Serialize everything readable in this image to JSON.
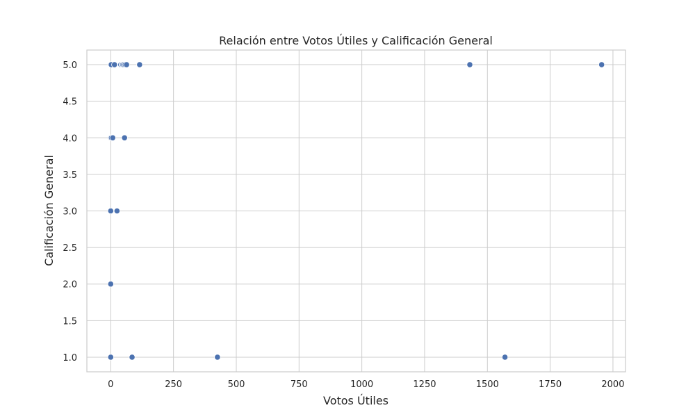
{
  "chart_data": {
    "type": "scatter",
    "title": "Relación entre Votos Útiles y Calificación General",
    "xlabel": "Votos Útiles",
    "ylabel": "Calificación General",
    "xlim": [
      -95,
      2050
    ],
    "ylim": [
      0.8,
      5.2
    ],
    "xticks": [
      0,
      250,
      500,
      750,
      1000,
      1250,
      1500,
      1750,
      2000
    ],
    "yticks": [
      1.0,
      1.5,
      2.0,
      2.5,
      3.0,
      3.5,
      4.0,
      4.5,
      5.0
    ],
    "grid": true,
    "point_color": "#4c72b0",
    "points": [
      {
        "x": 0,
        "y": 5.0
      },
      {
        "x": 2,
        "y": 5.0
      },
      {
        "x": 15,
        "y": 5.0
      },
      {
        "x": 40,
        "y": 5.0
      },
      {
        "x": 45,
        "y": 5.0
      },
      {
        "x": 48,
        "y": 5.0
      },
      {
        "x": 52,
        "y": 5.0
      },
      {
        "x": 58,
        "y": 5.0
      },
      {
        "x": 63,
        "y": 5.0
      },
      {
        "x": 115,
        "y": 5.0
      },
      {
        "x": 1430,
        "y": 5.0
      },
      {
        "x": 1955,
        "y": 5.0
      },
      {
        "x": 0,
        "y": 4.0
      },
      {
        "x": 3,
        "y": 4.0
      },
      {
        "x": 8,
        "y": 4.0
      },
      {
        "x": 55,
        "y": 4.0
      },
      {
        "x": 0,
        "y": 3.0
      },
      {
        "x": 25,
        "y": 3.0
      },
      {
        "x": 0,
        "y": 2.0
      },
      {
        "x": 0,
        "y": 1.0
      },
      {
        "x": 85,
        "y": 1.0
      },
      {
        "x": 425,
        "y": 1.0
      },
      {
        "x": 1570,
        "y": 1.0
      }
    ]
  }
}
